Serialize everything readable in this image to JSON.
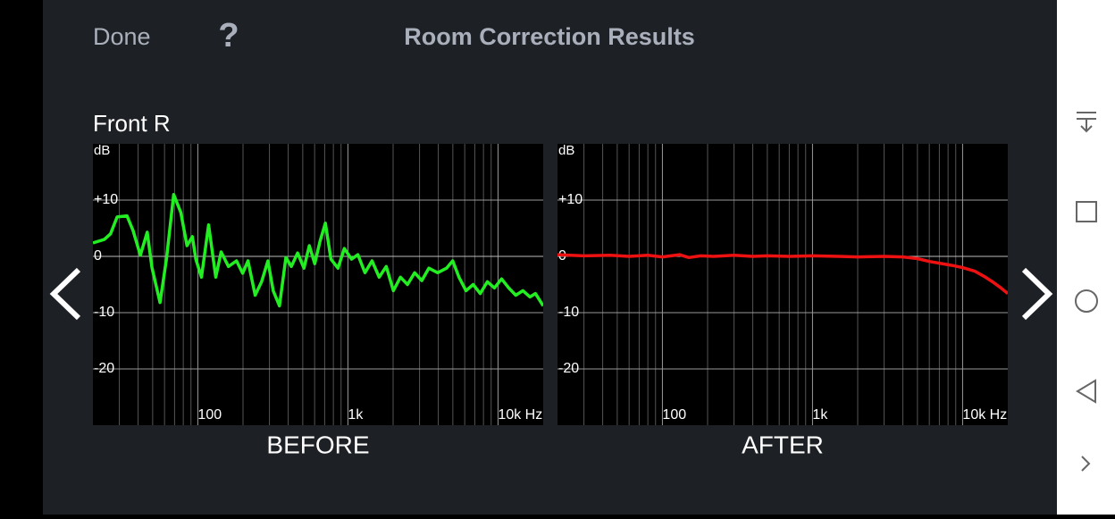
{
  "header": {
    "done": "Done",
    "help": "?",
    "title": "Room Correction Results"
  },
  "channel": "Front R",
  "chart_data": [
    {
      "type": "line",
      "title": "BEFORE",
      "y_label": "dB",
      "log_x": true,
      "grid": true,
      "color": "#22ee22",
      "xlim": [
        20,
        20000
      ],
      "ylim": [
        -30,
        20
      ],
      "xticks": [
        100,
        {
          "value": 1000,
          "label": "1k"
        },
        {
          "value": 10000,
          "label": "10k Hz"
        }
      ],
      "x_minor_ticks": [
        30,
        40,
        50,
        60,
        70,
        80,
        90,
        200,
        300,
        400,
        500,
        600,
        700,
        800,
        900,
        2000,
        3000,
        4000,
        5000,
        6000,
        7000,
        8000,
        9000
      ],
      "yticks": [
        {
          "value": 10,
          "label": "+10"
        },
        0,
        -10,
        -20
      ],
      "x": [
        20,
        23.8,
        26.2,
        29,
        33.7,
        37,
        41.4,
        46,
        49.5,
        56,
        61.8,
        69,
        77,
        84.7,
        92,
        97,
        105.7,
        118,
        131.7,
        143,
        160,
        181,
        199,
        216,
        241,
        266,
        293,
        318,
        350,
        386,
        420,
        462,
        509,
        553,
        601,
        652,
        708,
        770,
        858,
        946,
        1058,
        1165,
        1298,
        1447,
        1614,
        1800,
        2007,
        2238,
        2495,
        2783,
        3104,
        3462,
        3963,
        4537,
        4990,
        5490,
        6120,
        6826,
        7612,
        8490,
        9467,
        10560,
        11780,
        13130,
        14650,
        16330,
        17760,
        20000
      ],
      "values": [
        2.4,
        3,
        4,
        7,
        7.2,
        4.6,
        0.2,
        4.3,
        -2,
        -8.2,
        -0.5,
        11,
        7.8,
        1.9,
        3.5,
        -0.5,
        -3.7,
        5.6,
        -3.7,
        0.8,
        -1.8,
        -0.8,
        -3,
        -0.8,
        -6.9,
        -4.5,
        -0.8,
        -6.1,
        -8.8,
        -0.2,
        -1.8,
        0.6,
        -2.1,
        1.9,
        -1.3,
        2.7,
        5.9,
        -0.5,
        -2.1,
        1.4,
        -0.5,
        0.3,
        -2.9,
        -0.8,
        -3.7,
        -1.8,
        -6.1,
        -3.7,
        -5,
        -2.9,
        -4.3,
        -2.1,
        -2.9,
        -2.1,
        -0.8,
        -3.7,
        -6.1,
        -5,
        -6.6,
        -4.5,
        -5.6,
        -4,
        -5.6,
        -6.9,
        -6.1,
        -7.2,
        -6.6,
        -8.8
      ]
    },
    {
      "type": "line",
      "title": "AFTER",
      "y_label": "dB",
      "log_x": true,
      "grid": true,
      "color": "#ee1111",
      "xlim": [
        20,
        20000
      ],
      "ylim": [
        -30,
        20
      ],
      "xticks": [
        100,
        {
          "value": 1000,
          "label": "1k"
        },
        {
          "value": 10000,
          "label": "10k Hz"
        }
      ],
      "x_minor_ticks": [
        30,
        40,
        50,
        60,
        70,
        80,
        90,
        200,
        300,
        400,
        500,
        600,
        700,
        800,
        900,
        2000,
        3000,
        4000,
        5000,
        6000,
        7000,
        8000,
        9000
      ],
      "yticks": [
        {
          "value": 10,
          "label": "+10"
        },
        0,
        -10,
        -20
      ],
      "x": [
        20,
        30,
        45,
        60,
        80,
        100,
        130,
        150,
        180,
        220,
        300,
        400,
        500,
        700,
        1000,
        1500,
        2000,
        3000,
        4000,
        5000,
        6000,
        7000,
        8500,
        10000,
        12000,
        14000,
        16000,
        18000,
        20000
      ],
      "values": [
        0.3,
        0.1,
        0.2,
        0,
        0.2,
        -0.1,
        0.3,
        -0.2,
        0.1,
        0,
        0.2,
        0,
        0.1,
        0,
        0.1,
        0,
        -0.1,
        0,
        -0.1,
        -0.4,
        -0.9,
        -1.2,
        -1.6,
        -2,
        -2.6,
        -3.6,
        -4.6,
        -5.6,
        -6.6
      ]
    }
  ]
}
